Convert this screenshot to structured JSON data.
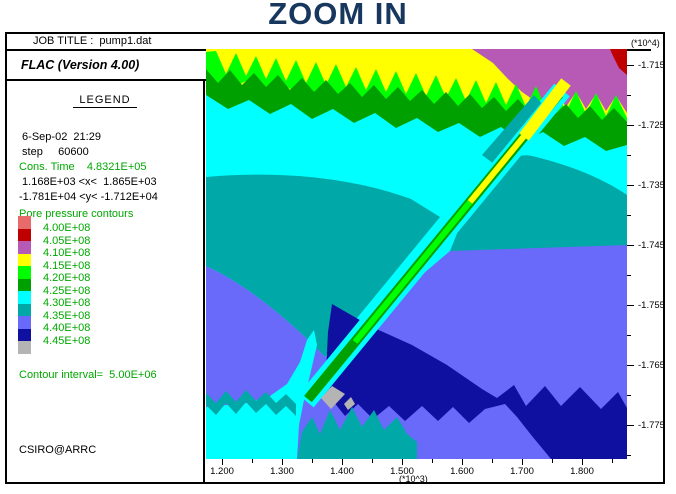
{
  "title": "ZOOM IN",
  "job_title_bar": {
    "label": "JOB TITLE :  pump1.dat"
  },
  "app": {
    "name": "FLAC (Version 4.00)"
  },
  "legend": {
    "heading": "LEGEND",
    "datetime": " 6-Sep-02  21:29",
    "step": " step     60600",
    "cons_time": "Cons. Time    4.8321E+05",
    "x_range": " 1.168E+03 <x<  1.865E+03",
    "y_range": "-1.781E+04 <y< -1.712E+04",
    "contours_title": "Pore pressure contours",
    "swatch_colors": [
      "#E86A6A",
      "#BE0000",
      "#B75AB5",
      "#FFFF00",
      "#00FF00",
      "#00A000",
      "#00FFFF",
      "#00A8A8",
      "#6A6AFA",
      "#1010A0",
      "#B4B4B4"
    ],
    "level_labels": [
      "4.00E+08",
      "4.05E+08",
      "4.10E+08",
      "4.15E+08",
      "4.20E+08",
      "4.25E+08",
      "4.30E+08",
      "4.35E+08",
      "4.40E+08",
      "4.45E+08"
    ],
    "contour_interval": "Contour interval=  5.00E+06",
    "credit": "CSIRO@ARRC"
  },
  "axes": {
    "y_unit": "(*10^4)",
    "y_ticks": [
      "-1.715",
      "-1.725",
      "-1.735",
      "-1.745",
      "-1.755",
      "-1.765",
      "-1.775"
    ],
    "x_ticks": [
      "1.200",
      "1.300",
      "1.400",
      "1.500",
      "1.600",
      "1.700",
      "1.800"
    ],
    "x_unit": "(*10^3)"
  },
  "chart_data": {
    "type": "heatmap",
    "title": "Pore pressure contours",
    "xlabel": "x (*10^3)",
    "ylabel": "y (*10^4)",
    "x_range": [
      1168,
      1865
    ],
    "y_range": [
      -17810,
      -17120
    ],
    "x_tick_values": [
      1200,
      1300,
      1400,
      1500,
      1600,
      1700,
      1800
    ],
    "y_tick_values": [
      -17150,
      -17250,
      -17350,
      -17450,
      -17550,
      -17650,
      -17750
    ],
    "contour_interval": 5000000,
    "levels": [
      {
        "value": 400000000.0,
        "color": "#BE0000"
      },
      {
        "value": 405000000.0,
        "color": "#B75AB5"
      },
      {
        "value": 410000000.0,
        "color": "#FFFF00"
      },
      {
        "value": 415000000.0,
        "color": "#00FF00"
      },
      {
        "value": 420000000.0,
        "color": "#00A000"
      },
      {
        "value": 425000000.0,
        "color": "#00FFFF"
      },
      {
        "value": 430000000.0,
        "color": "#00A8A8"
      },
      {
        "value": 435000000.0,
        "color": "#6A6AFA"
      },
      {
        "value": 440000000.0,
        "color": "#1010A0"
      },
      {
        "value": 445000000.0,
        "color": "#B4B4B4"
      }
    ],
    "annotations": [
      "high pressure (red/purple/yellow) band along top of model",
      "inclined low-pressure drain/fault band running from upper right to lower left",
      "pressure increases with depth toward dark blue at bottom right"
    ]
  }
}
